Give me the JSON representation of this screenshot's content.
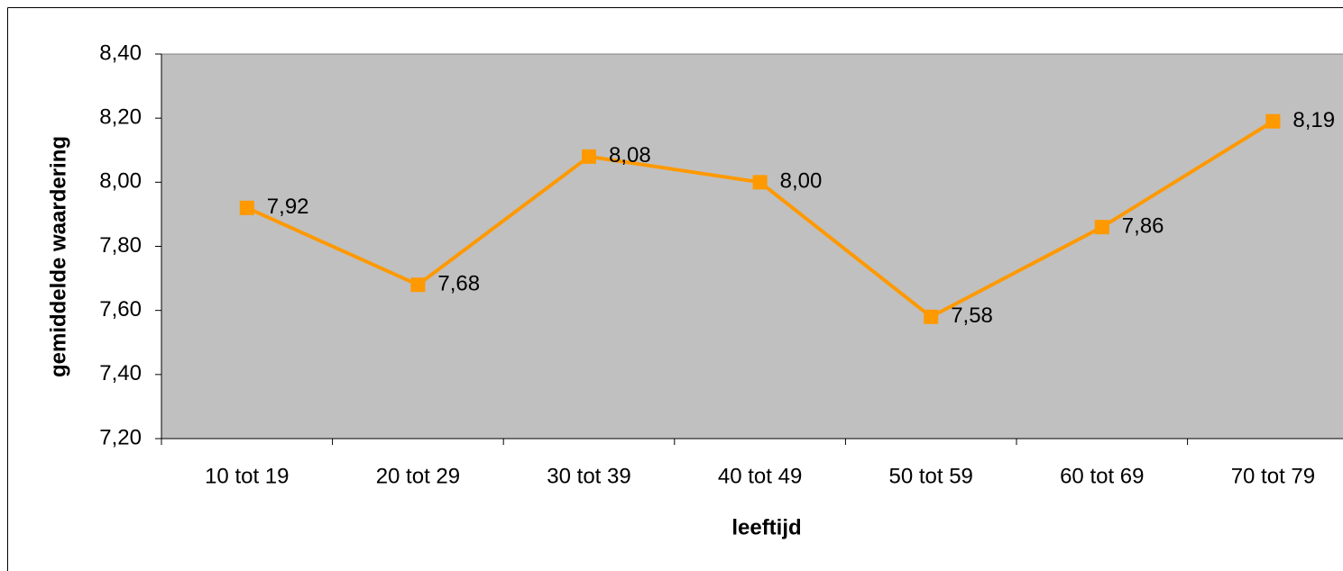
{
  "chart_data": {
    "type": "line",
    "x_label": "leeftijd",
    "y_label": "gemiddelde waardering",
    "categories": [
      "10 tot 19",
      "20 tot 29",
      "30 tot 39",
      "40 tot 49",
      "50 tot 59",
      "60 tot 69",
      "70 tot 79"
    ],
    "series": [
      {
        "color": "#ff9900",
        "values": [
          7.92,
          7.68,
          8.08,
          8.0,
          7.58,
          7.86,
          8.19
        ],
        "value_labels": [
          "7,92",
          "7,68",
          "8,08",
          "8,00",
          "7,58",
          "7,86",
          "8,19"
        ]
      }
    ],
    "ylim": [
      7.2,
      8.4
    ],
    "yticks": [
      {
        "value": 7.2,
        "label": "7,20"
      },
      {
        "value": 7.4,
        "label": "7,40"
      },
      {
        "value": 7.6,
        "label": "7,60"
      },
      {
        "value": 7.8,
        "label": "7,80"
      },
      {
        "value": 8.0,
        "label": "8,00"
      },
      {
        "value": 8.2,
        "label": "8,20"
      },
      {
        "value": 8.4,
        "label": "8,40"
      }
    ],
    "plot_background": "#c0c0c0"
  }
}
